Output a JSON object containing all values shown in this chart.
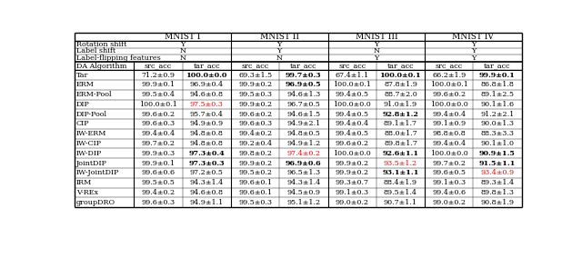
{
  "col_groups": [
    "MNIST I",
    "MNIST II",
    "MNIST III",
    "MNIST IV"
  ],
  "sub_cols": [
    "src_acc",
    "tar_acc"
  ],
  "header_rows": [
    [
      "Rotation shift",
      "Y",
      "Y",
      "Y",
      "Y"
    ],
    [
      "Label shift",
      "N",
      "Y",
      "N",
      "Y"
    ],
    [
      "Label-flipping features",
      "N",
      "N",
      "Y",
      "Y"
    ]
  ],
  "da_col_header": "DA Algorithm",
  "rows": [
    {
      "name": "Tar",
      "data": [
        [
          "71.2±0.9",
          "100.0±0.0"
        ],
        [
          "69.3±1.5",
          "99.7±0.3"
        ],
        [
          "67.4±1.1",
          "100.0±0.1"
        ],
        [
          "66.2±1.9",
          "99.9±0.1"
        ]
      ],
      "bold": [
        [
          false,
          true
        ],
        [
          false,
          true
        ],
        [
          false,
          true
        ],
        [
          false,
          true
        ]
      ],
      "red": [
        [
          false,
          false
        ],
        [
          false,
          false
        ],
        [
          false,
          false
        ],
        [
          false,
          false
        ]
      ]
    },
    {
      "name": "ERM",
      "data": [
        [
          "99.9±0.1",
          "96.9±0.4"
        ],
        [
          "99.9±0.2",
          "96.9±0.5"
        ],
        [
          "100.0±0.1",
          "87.8±1.9"
        ],
        [
          "100.0±0.1",
          "86.8±1.8"
        ]
      ],
      "bold": [
        [
          false,
          false
        ],
        [
          false,
          true
        ],
        [
          false,
          false
        ],
        [
          false,
          false
        ]
      ],
      "red": [
        [
          false,
          false
        ],
        [
          false,
          false
        ],
        [
          false,
          false
        ],
        [
          false,
          false
        ]
      ]
    },
    {
      "name": "ERM-Pool",
      "data": [
        [
          "99.5±0.4",
          "94.6±0.8"
        ],
        [
          "99.5±0.3",
          "94.6±1.3"
        ],
        [
          "99.4±0.5",
          "88.7±2.0"
        ],
        [
          "99.6±0.2",
          "89.1±2.5"
        ]
      ],
      "bold": [
        [
          false,
          false
        ],
        [
          false,
          false
        ],
        [
          false,
          false
        ],
        [
          false,
          false
        ]
      ],
      "red": [
        [
          false,
          false
        ],
        [
          false,
          false
        ],
        [
          false,
          false
        ],
        [
          false,
          false
        ]
      ]
    },
    {
      "name": "DIP",
      "data": [
        [
          "100.0±0.1",
          "97.5±0.3"
        ],
        [
          "99.9±0.2",
          "96.7±0.5"
        ],
        [
          "100.0±0.0",
          "91.0±1.9"
        ],
        [
          "100.0±0.0",
          "90.1±1.6"
        ]
      ],
      "bold": [
        [
          false,
          false
        ],
        [
          false,
          false
        ],
        [
          false,
          false
        ],
        [
          false,
          false
        ]
      ],
      "red": [
        [
          false,
          true
        ],
        [
          false,
          false
        ],
        [
          false,
          false
        ],
        [
          false,
          false
        ]
      ]
    },
    {
      "name": "DIP-Pool",
      "data": [
        [
          "99.6±0.2",
          "95.7±0.4"
        ],
        [
          "99.6±0.2",
          "94.6±1.5"
        ],
        [
          "99.4±0.5",
          "92.8±1.2"
        ],
        [
          "99.4±0.4",
          "91.2±2.1"
        ]
      ],
      "bold": [
        [
          false,
          false
        ],
        [
          false,
          false
        ],
        [
          false,
          true
        ],
        [
          false,
          false
        ]
      ],
      "red": [
        [
          false,
          false
        ],
        [
          false,
          false
        ],
        [
          false,
          false
        ],
        [
          false,
          false
        ]
      ]
    },
    {
      "name": "CIP",
      "data": [
        [
          "99.6±0.3",
          "94.9±0.9"
        ],
        [
          "99.6±0.3",
          "94.9±2.1"
        ],
        [
          "99.4±0.4",
          "89.1±1.7"
        ],
        [
          "99.1±0.9",
          "90.0±1.3"
        ]
      ],
      "bold": [
        [
          false,
          false
        ],
        [
          false,
          false
        ],
        [
          false,
          false
        ],
        [
          false,
          false
        ]
      ],
      "red": [
        [
          false,
          false
        ],
        [
          false,
          false
        ],
        [
          false,
          false
        ],
        [
          false,
          false
        ]
      ]
    },
    {
      "name": "IW-ERM",
      "data": [
        [
          "99.4±0.4",
          "94.8±0.8"
        ],
        [
          "99.4±0.2",
          "94.8±0.5"
        ],
        [
          "99.4±0.5",
          "88.0±1.7"
        ],
        [
          "98.8±0.8",
          "88.3±3.3"
        ]
      ],
      "bold": [
        [
          false,
          false
        ],
        [
          false,
          false
        ],
        [
          false,
          false
        ],
        [
          false,
          false
        ]
      ],
      "red": [
        [
          false,
          false
        ],
        [
          false,
          false
        ],
        [
          false,
          false
        ],
        [
          false,
          false
        ]
      ]
    },
    {
      "name": "IW-CIP",
      "data": [
        [
          "99.7±0.2",
          "94.8±0.8"
        ],
        [
          "99.2±0.4",
          "94.9±1.2"
        ],
        [
          "99.6±0.2",
          "89.8±1.7"
        ],
        [
          "99.4±0.4",
          "90.1±1.0"
        ]
      ],
      "bold": [
        [
          false,
          false
        ],
        [
          false,
          false
        ],
        [
          false,
          false
        ],
        [
          false,
          false
        ]
      ],
      "red": [
        [
          false,
          false
        ],
        [
          false,
          false
        ],
        [
          false,
          false
        ],
        [
          false,
          false
        ]
      ]
    },
    {
      "name": "IW-DIP",
      "data": [
        [
          "99.9±0.3",
          "97.3±0.4"
        ],
        [
          "99.8±0.2",
          "97.4±0.2"
        ],
        [
          "100.0±0.0",
          "92.6±1.1"
        ],
        [
          "100.0±0.0",
          "90.9±1.5"
        ]
      ],
      "bold": [
        [
          false,
          true
        ],
        [
          false,
          false
        ],
        [
          false,
          true
        ],
        [
          false,
          true
        ]
      ],
      "red": [
        [
          false,
          false
        ],
        [
          false,
          true
        ],
        [
          false,
          false
        ],
        [
          false,
          false
        ]
      ]
    },
    {
      "name": "JointDIP",
      "data": [
        [
          "99.9±0.1",
          "97.3±0.3"
        ],
        [
          "99.9±0.2",
          "96.9±0.6"
        ],
        [
          "99.9±0.2",
          "93.5±1.2"
        ],
        [
          "99.7±0.2",
          "91.5±1.1"
        ]
      ],
      "bold": [
        [
          false,
          true
        ],
        [
          false,
          true
        ],
        [
          false,
          false
        ],
        [
          false,
          true
        ]
      ],
      "red": [
        [
          false,
          false
        ],
        [
          false,
          false
        ],
        [
          false,
          true
        ],
        [
          false,
          false
        ]
      ]
    },
    {
      "name": "IW-JointDIP",
      "data": [
        [
          "99.6±0.6",
          "97.2±0.5"
        ],
        [
          "99.5±0.2",
          "96.5±1.3"
        ],
        [
          "99.9±0.2",
          "93.1±1.1"
        ],
        [
          "99.6±0.5",
          "93.4±0.9"
        ]
      ],
      "bold": [
        [
          false,
          false
        ],
        [
          false,
          false
        ],
        [
          false,
          true
        ],
        [
          false,
          false
        ]
      ],
      "red": [
        [
          false,
          false
        ],
        [
          false,
          false
        ],
        [
          false,
          false
        ],
        [
          false,
          true
        ]
      ]
    },
    {
      "name": "IRM",
      "data": [
        [
          "99.5±0.5",
          "94.3±1.4"
        ],
        [
          "99.6±0.1",
          "94.3±1.4"
        ],
        [
          "99.3±0.7",
          "88.4±1.9"
        ],
        [
          "99.1±0.3",
          "89.3±1.4"
        ]
      ],
      "bold": [
        [
          false,
          false
        ],
        [
          false,
          false
        ],
        [
          false,
          false
        ],
        [
          false,
          false
        ]
      ],
      "red": [
        [
          false,
          false
        ],
        [
          false,
          false
        ],
        [
          false,
          false
        ],
        [
          false,
          false
        ]
      ]
    },
    {
      "name": "V-REx",
      "data": [
        [
          "99.4±0.2",
          "94.6±0.8"
        ],
        [
          "99.6±0.1",
          "94.5±0.9"
        ],
        [
          "99.1±0.3",
          "89.5±1.4"
        ],
        [
          "99.4±0.6",
          "89.8±1.3"
        ]
      ],
      "bold": [
        [
          false,
          false
        ],
        [
          false,
          false
        ],
        [
          false,
          false
        ],
        [
          false,
          false
        ]
      ],
      "red": [
        [
          false,
          false
        ],
        [
          false,
          false
        ],
        [
          false,
          false
        ],
        [
          false,
          false
        ]
      ]
    },
    {
      "name": "groupDRO",
      "data": [
        [
          "99.6±0.3",
          "94.9±1.1"
        ],
        [
          "99.5±0.3",
          "95.1±1.2"
        ],
        [
          "99.0±0.2",
          "90.7±1.1"
        ],
        [
          "99.0±0.2",
          "90.8±1.9"
        ]
      ],
      "bold": [
        [
          false,
          false
        ],
        [
          false,
          false
        ],
        [
          false,
          false
        ],
        [
          false,
          false
        ]
      ],
      "red": [
        [
          false,
          false
        ],
        [
          false,
          false
        ],
        [
          false,
          false
        ],
        [
          false,
          false
        ]
      ]
    }
  ],
  "bg_color": "#ffffff",
  "line_color": "#000000",
  "red_color": "#ff0000",
  "fontsize": 5.8,
  "header_fontsize": 6.5
}
